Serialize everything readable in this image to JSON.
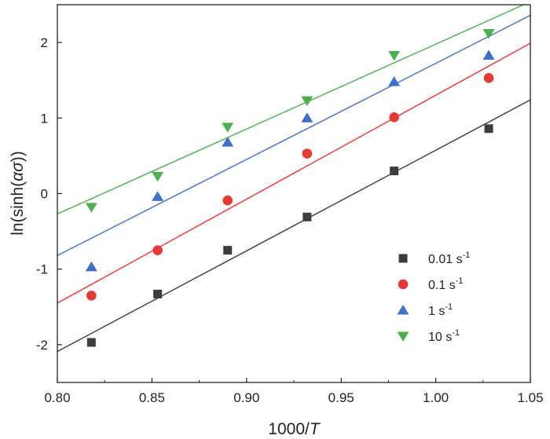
{
  "chart_data": {
    "type": "scatter",
    "xlabel": {
      "prefix": "1000/",
      "var": "T"
    },
    "ylabel": {
      "prefix": "ln(sinh(",
      "greek": "ασ",
      "suffix": "))"
    },
    "xlim": [
      0.8,
      1.05
    ],
    "ylim": [
      -2.5,
      2.5
    ],
    "xticks": [
      0.8,
      0.85,
      0.9,
      0.95,
      1.0,
      1.05
    ],
    "xtick_labels": [
      "0.80",
      "0.85",
      "0.90",
      "0.95",
      "1.00",
      "1.05"
    ],
    "yticks": [
      -2,
      -1,
      0,
      1,
      2
    ],
    "ytick_labels": [
      "-2",
      "-1",
      "0",
      "1",
      "2"
    ],
    "grid": false,
    "legend_position": "bottom-right",
    "series": [
      {
        "name": "0.01 s",
        "unit_sup": "-1",
        "marker": "square",
        "color": "#3d3d3d",
        "line_color": "#454545",
        "x": [
          0.818,
          0.853,
          0.89,
          0.932,
          0.978,
          1.028
        ],
        "y": [
          -1.97,
          -1.33,
          -0.75,
          -0.31,
          0.3,
          0.86
        ],
        "fit": {
          "x": [
            0.8,
            1.05
          ],
          "y": [
            -2.09,
            1.24
          ]
        }
      },
      {
        "name": "0.1 s",
        "unit_sup": "-1",
        "marker": "circle",
        "color": "#e53935",
        "line_color": "#e5403a",
        "x": [
          0.818,
          0.853,
          0.89,
          0.932,
          0.978,
          1.028
        ],
        "y": [
          -1.35,
          -0.75,
          -0.09,
          0.53,
          1.01,
          1.53
        ],
        "fit": {
          "x": [
            0.8,
            1.05
          ],
          "y": [
            -1.45,
            1.99
          ]
        }
      },
      {
        "name": "1 s",
        "unit_sup": "-1",
        "marker": "triangle-up",
        "color": "#3f6fc6",
        "line_color": "#4a78c8",
        "x": [
          0.818,
          0.853,
          0.89,
          0.932,
          0.978,
          1.028
        ],
        "y": [
          -0.97,
          -0.04,
          0.68,
          1.0,
          1.48,
          1.83
        ],
        "fit": {
          "x": [
            0.8,
            1.05
          ],
          "y": [
            -0.82,
            2.36
          ]
        }
      },
      {
        "name": "10 s",
        "unit_sup": "-1",
        "marker": "triangle-down",
        "color": "#4caf50",
        "line_color": "#57b35a",
        "x": [
          0.818,
          0.853,
          0.89,
          0.932,
          0.978,
          1.028
        ],
        "y": [
          -0.18,
          0.23,
          0.88,
          1.23,
          1.83,
          2.12
        ],
        "fit": {
          "x": [
            0.8,
            1.05
          ],
          "y": [
            -0.27,
            2.54
          ]
        }
      }
    ]
  }
}
